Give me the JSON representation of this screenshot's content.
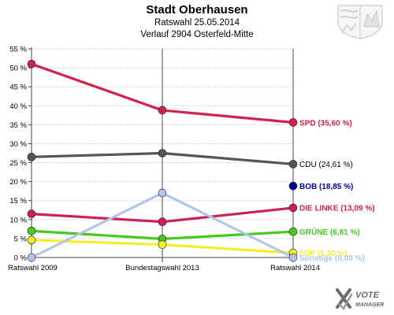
{
  "header": {
    "title": "Stadt Oberhausen",
    "subtitle": "Ratswahl 25.05.2014",
    "subsubtitle": "Verlauf 2904 Osterfeld-Mitte"
  },
  "brand": {
    "line1": "VOTE",
    "line2": "MANAGER"
  },
  "chart_data": {
    "type": "line",
    "title": "Stadt Oberhausen",
    "categories": [
      "Ratswahl 2009",
      "Bundestagswahl 2013",
      "Ratswahl 2014"
    ],
    "y_ticks": [
      "0 %",
      "5 %",
      "10 %",
      "15 %",
      "20 %",
      "25 %",
      "30 %",
      "35 %",
      "40 %",
      "45 %",
      "50 %",
      "55 %"
    ],
    "ylim": [
      0,
      55
    ],
    "grid": true,
    "legend": "right",
    "series": [
      {
        "name": "SPD",
        "label": "SPD (35,60 %)",
        "color": "#d4204a",
        "values": [
          51.0,
          38.8,
          35.6
        ]
      },
      {
        "name": "CDU",
        "label": "CDU (24,61 %)",
        "color": "#555555",
        "values": [
          26.5,
          27.5,
          24.61
        ]
      },
      {
        "name": "BOB",
        "label": "BOB (18,85 %)",
        "color": "#000099",
        "values": [
          null,
          null,
          18.85
        ]
      },
      {
        "name": "DIE LINKE",
        "label": "DIE LINKE (13,09 %)",
        "color": "#cc1f55",
        "values": [
          11.5,
          9.4,
          13.09
        ]
      },
      {
        "name": "GRÜNE",
        "label": "GRÜNE (6,81 %)",
        "color": "#46c81e",
        "values": [
          7.0,
          4.9,
          6.81
        ]
      },
      {
        "name": "FDP",
        "label": "FDP (1,20 %)",
        "color": "#f2ee2a",
        "values": [
          4.6,
          3.4,
          1.2
        ]
      },
      {
        "name": "Sonstige",
        "label": "Sonstige (0,00 %)",
        "color": "#b0c4ec",
        "values": [
          0.0,
          17.0,
          0.0
        ]
      }
    ]
  }
}
